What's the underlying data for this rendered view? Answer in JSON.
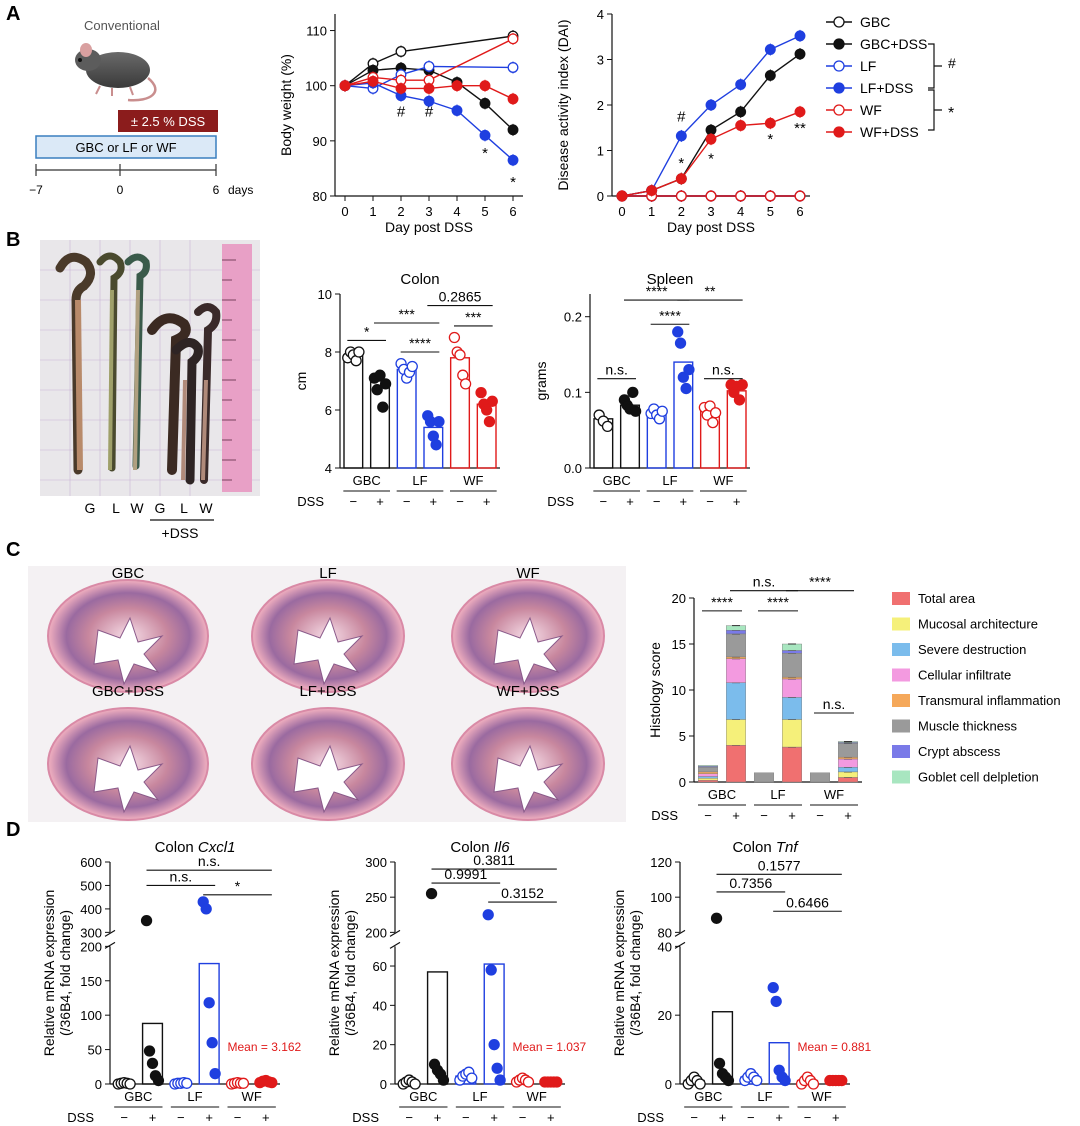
{
  "panel_letters": [
    "A",
    "B",
    "C",
    "D"
  ],
  "colors": {
    "gbc": "#111111",
    "lf": "#1f3fe0",
    "wf": "#e01a1a",
    "dss_box": "#8b1c1c",
    "timeline_box": "#dbe9f7",
    "timeline_border": "#3a7fbf"
  },
  "schematic": {
    "mouse_label": "Conventional",
    "dss_label": "± 2.5 % DSS",
    "diet_label": "GBC or LF or WF",
    "timeline_ticks": [
      "−7",
      "0",
      "6"
    ],
    "timeline_unit": "days"
  },
  "legend_A": {
    "items": [
      {
        "label": "GBC",
        "color": "#111111",
        "filled": false
      },
      {
        "label": "GBC+DSS",
        "color": "#111111",
        "filled": true
      },
      {
        "label": "LF",
        "color": "#1f3fe0",
        "filled": false
      },
      {
        "label": "LF+DSS",
        "color": "#1f3fe0",
        "filled": true
      },
      {
        "label": "WF",
        "color": "#e01a1a",
        "filled": false
      },
      {
        "label": "WF+DSS",
        "color": "#e01a1a",
        "filled": true
      }
    ],
    "sig_lf": "#",
    "sig_wf": "*"
  },
  "photoB": {
    "labels": [
      "G",
      "L",
      "W",
      "G",
      "L",
      "W"
    ],
    "dss_label": "+DSS"
  },
  "groups": [
    "GBC",
    "LF",
    "WF"
  ],
  "dss_label": "DSS",
  "dss_signs": [
    "−",
    "+",
    "−",
    "+",
    "−",
    "+"
  ],
  "histology": {
    "top": [
      "GBC",
      "LF",
      "WF"
    ],
    "bottom": [
      "GBC+DSS",
      "LF+DSS",
      "WF+DSS"
    ]
  },
  "chart_data": [
    {
      "id": "body_weight",
      "type": "line",
      "ylabel": "Body weight (%)",
      "xlabel": "Day post DSS",
      "x": [
        0,
        1,
        2,
        3,
        4,
        5,
        6
      ],
      "ylim": [
        80,
        113
      ],
      "yticks": [
        80,
        90,
        100,
        110
      ],
      "series": [
        {
          "name": "GBC",
          "color": "#111111",
          "filled": false,
          "values": [
            100,
            104,
            106.2,
            null,
            null,
            null,
            109
          ]
        },
        {
          "name": "GBC+DSS",
          "color": "#111111",
          "filled": true,
          "values": [
            100,
            102.8,
            103.2,
            102.8,
            100.6,
            96.8,
            92
          ]
        },
        {
          "name": "LF",
          "color": "#1f3fe0",
          "filled": false,
          "values": [
            100,
            99.5,
            102,
            103.5,
            null,
            null,
            103.3
          ]
        },
        {
          "name": "LF+DSS",
          "color": "#1f3fe0",
          "filled": true,
          "values": [
            100,
            100.5,
            98.2,
            97.2,
            95.5,
            91,
            86.5
          ]
        },
        {
          "name": "WF",
          "color": "#e01a1a",
          "filled": false,
          "values": [
            100,
            101.5,
            101,
            101,
            null,
            null,
            108.5
          ]
        },
        {
          "name": "WF+DSS",
          "color": "#e01a1a",
          "filled": true,
          "values": [
            100,
            100.8,
            99.5,
            99.5,
            100,
            100,
            97.6
          ]
        }
      ],
      "annotations": [
        {
          "x": 2,
          "y": 95.3,
          "text": "#"
        },
        {
          "x": 3,
          "y": 95.3,
          "text": "#"
        },
        {
          "x": 5,
          "y": 87.8,
          "text": "*"
        },
        {
          "x": 6,
          "y": 82.5,
          "text": "*"
        }
      ]
    },
    {
      "id": "dai",
      "type": "line",
      "ylabel": "Disease activity index (DAI)",
      "xlabel": "Day post DSS",
      "x": [
        0,
        1,
        2,
        3,
        4,
        5,
        6
      ],
      "ylim": [
        0,
        4
      ],
      "yticks": [
        0,
        1,
        2,
        3,
        4
      ],
      "series": [
        {
          "name": "GBC",
          "color": "#111111",
          "filled": false,
          "values": [
            0,
            0,
            0,
            0,
            0,
            0,
            0
          ]
        },
        {
          "name": "GBC+DSS",
          "color": "#111111",
          "filled": true,
          "values": [
            0,
            0.12,
            0.38,
            1.45,
            1.85,
            2.65,
            3.12
          ]
        },
        {
          "name": "LF",
          "color": "#1f3fe0",
          "filled": false,
          "values": [
            0,
            0,
            0,
            0,
            0,
            0,
            0
          ]
        },
        {
          "name": "LF+DSS",
          "color": "#1f3fe0",
          "filled": true,
          "values": [
            0,
            0.12,
            1.32,
            2.0,
            2.45,
            3.22,
            3.52
          ]
        },
        {
          "name": "WF",
          "color": "#e01a1a",
          "filled": false,
          "values": [
            0,
            0,
            0,
            0,
            0,
            0,
            0
          ]
        },
        {
          "name": "WF+DSS",
          "color": "#e01a1a",
          "filled": true,
          "values": [
            0,
            0.12,
            0.38,
            1.25,
            1.55,
            1.6,
            1.85
          ]
        }
      ],
      "annotations": [
        {
          "x": 2,
          "y": 1.75,
          "text": "#"
        },
        {
          "x": 2,
          "y": 0.72,
          "text": "*"
        },
        {
          "x": 3,
          "y": 0.82,
          "text": "*"
        },
        {
          "x": 5,
          "y": 1.25,
          "text": "*"
        },
        {
          "x": 6,
          "y": 1.5,
          "text": "**"
        }
      ]
    },
    {
      "id": "colon",
      "type": "bar",
      "title": "Colon",
      "ylabel": "cm",
      "ylim": [
        4,
        10
      ],
      "yticks": [
        4,
        6,
        8,
        10
      ],
      "categories": [
        "GBC",
        "GBC+DSS",
        "LF",
        "LF+DSS",
        "WF",
        "WF+DSS"
      ],
      "values": [
        7.9,
        7.0,
        7.4,
        5.4,
        7.8,
        6.2
      ],
      "points": [
        [
          7.8,
          8.0,
          7.9,
          7.7,
          8.0
        ],
        [
          7.1,
          6.7,
          7.2,
          6.1,
          6.9
        ],
        [
          7.6,
          7.4,
          7.1,
          7.3,
          7.5
        ],
        [
          5.8,
          5.6,
          5.1,
          4.8,
          5.6
        ],
        [
          8.5,
          8.0,
          7.9,
          7.2,
          6.9
        ],
        [
          6.6,
          6.2,
          6.0,
          5.6,
          6.3
        ]
      ],
      "sig": [
        {
          "a": 0,
          "b": 1,
          "y": 8.4,
          "text": "*"
        },
        {
          "a": 1,
          "b": 3,
          "y": 9.0,
          "text": "***"
        },
        {
          "a": 2,
          "b": 3,
          "y": 8.0,
          "text": "****"
        },
        {
          "a": 4,
          "b": 5,
          "y": 8.9,
          "text": "***"
        },
        {
          "a": 3,
          "b": 5,
          "y": 9.6,
          "text": "0.2865"
        }
      ]
    },
    {
      "id": "spleen",
      "type": "bar",
      "title": "Spleen",
      "ylabel": "grams",
      "ylim": [
        0,
        0.23
      ],
      "yticks": [
        0.0,
        0.1,
        0.2
      ],
      "categories": [
        "GBC",
        "GBC+DSS",
        "LF",
        "LF+DSS",
        "WF",
        "WF+DSS"
      ],
      "values": [
        0.065,
        0.083,
        0.072,
        0.14,
        0.075,
        0.102
      ],
      "points": [
        [
          0.07,
          0.062,
          0.055
        ],
        [
          0.09,
          0.083,
          0.078,
          0.1,
          0.075
        ],
        [
          0.072,
          0.078,
          0.07,
          0.065,
          0.075
        ],
        [
          0.18,
          0.165,
          0.12,
          0.105,
          0.13
        ],
        [
          0.08,
          0.07,
          0.082,
          0.06,
          0.073
        ],
        [
          0.11,
          0.1,
          0.108,
          0.09,
          0.11
        ]
      ],
      "sig": [
        {
          "a": 0,
          "b": 1,
          "y": 0.118,
          "text": "n.s."
        },
        {
          "a": 2,
          "b": 3,
          "y": 0.19,
          "text": "****"
        },
        {
          "a": 1,
          "b": 3,
          "y": 0.222,
          "text": "****"
        },
        {
          "a": 3,
          "b": 5,
          "y": 0.222,
          "text": "**"
        },
        {
          "a": 4,
          "b": 5,
          "y": 0.118,
          "text": "n.s."
        }
      ]
    },
    {
      "id": "histology_score",
      "type": "bar",
      "stacked": true,
      "ylabel": "Histology score",
      "ylim": [
        0,
        20
      ],
      "yticks": [
        0,
        5,
        10,
        15,
        20
      ],
      "categories": [
        "GBC",
        "GBC+DSS",
        "LF",
        "LF+DSS",
        "WF",
        "WF+DSS"
      ],
      "series": [
        {
          "name": "Total area",
          "color": "#f07070",
          "values": [
            0.2,
            4.0,
            0,
            3.8,
            0,
            0.5
          ]
        },
        {
          "name": "Mucosal architecture",
          "color": "#f5f07a",
          "values": [
            0.2,
            2.8,
            0,
            3.0,
            0,
            0.6
          ]
        },
        {
          "name": "Severe destruction",
          "color": "#7bbcec",
          "values": [
            0.2,
            4.0,
            0,
            2.4,
            0,
            0.5
          ]
        },
        {
          "name": "Cellular infiltrate",
          "color": "#f39ae0",
          "values": [
            0.3,
            2.6,
            0,
            2.0,
            0,
            0.9
          ]
        },
        {
          "name": "Transmural inflammation",
          "color": "#f5a85a",
          "values": [
            0.2,
            0.2,
            0,
            0.2,
            0,
            0.2
          ]
        },
        {
          "name": "Muscle thickness",
          "color": "#9a9a9a",
          "values": [
            0.5,
            2.5,
            1.0,
            2.6,
            1.0,
            1.5
          ]
        },
        {
          "name": "Crypt abscess",
          "color": "#7a7ae8",
          "values": [
            0.1,
            0.4,
            0,
            0.3,
            0,
            0.1
          ]
        },
        {
          "name": "Goblet cell delpletion",
          "color": "#a8e6c0",
          "values": [
            0.1,
            0.5,
            0,
            0.7,
            0,
            0.1
          ]
        }
      ],
      "sig": [
        {
          "a": 0,
          "b": 1,
          "y": 18.6,
          "text": "****"
        },
        {
          "a": 2,
          "b": 3,
          "y": 18.6,
          "text": "****"
        },
        {
          "a": 1,
          "b": 3,
          "y": 20.8,
          "text": "n.s."
        },
        {
          "a": 3,
          "b": 5,
          "y": 20.8,
          "text": "****"
        },
        {
          "a": 4,
          "b": 5,
          "y": 7.5,
          "text": "n.s."
        }
      ]
    },
    {
      "id": "cxcl1",
      "type": "bar",
      "title_plain": "Colon ",
      "title_gene": "Cxcl1",
      "ylabel": "Relative mRNA expression (/36B4, fold change)",
      "ylabel_lines": [
        "Relative mRNA expression",
        "(/36B4, fold change)"
      ],
      "broken_axis": true,
      "lower_range": [
        0,
        200
      ],
      "lower_ticks": [
        0,
        50,
        100,
        150,
        200
      ],
      "upper_range": [
        300,
        600
      ],
      "upper_ticks": [
        300,
        400,
        500,
        600
      ],
      "categories": [
        "GBC",
        "GBC+DSS",
        "LF",
        "LF+DSS",
        "WF",
        "WF+DSS"
      ],
      "values": [
        1,
        88,
        1,
        175,
        1,
        3.162
      ],
      "points": [
        [
          0,
          1,
          2,
          1,
          0
        ],
        [
          350,
          48,
          30,
          12,
          5
        ],
        [
          0,
          1,
          1,
          2,
          1
        ],
        [
          430,
          400,
          118,
          60,
          15
        ],
        [
          0,
          1,
          2,
          1,
          1
        ],
        [
          2,
          4,
          5,
          3,
          2
        ]
      ],
      "mean_label": "Mean = 3.162",
      "sig": [
        {
          "a": 1,
          "b": 5,
          "y": 565,
          "text": "n.s."
        },
        {
          "a": 1,
          "b": 3,
          "y": 500,
          "text": "n.s."
        },
        {
          "a": 3,
          "b": 5,
          "y": 460,
          "text": "*"
        }
      ]
    },
    {
      "id": "il6",
      "type": "bar",
      "title_plain": "Colon ",
      "title_gene": "Il6",
      "ylabel": "Relative mRNA expression (/36B4, fold change)",
      "ylabel_lines": [
        "Relative mRNA expression",
        "(/36B4, fold change)"
      ],
      "broken_axis": true,
      "lower_range": [
        0,
        70
      ],
      "lower_ticks": [
        0,
        20,
        40,
        60
      ],
      "upper_range": [
        200,
        300
      ],
      "upper_ticks": [
        200,
        250,
        300
      ],
      "categories": [
        "GBC",
        "GBC+DSS",
        "LF",
        "LF+DSS",
        "WF",
        "WF+DSS"
      ],
      "values": [
        1,
        57,
        4,
        61,
        2,
        1.037
      ],
      "points": [
        [
          0,
          1,
          2,
          1,
          0
        ],
        [
          255,
          10,
          7,
          5,
          2
        ],
        [
          2,
          4,
          5,
          6,
          3
        ],
        [
          225,
          58,
          20,
          8,
          2
        ],
        [
          1,
          2,
          3,
          2,
          1
        ],
        [
          1,
          1,
          1,
          1,
          1
        ]
      ],
      "mean_label": "Mean = 1.037",
      "sig": [
        {
          "a": 1,
          "b": 5,
          "y": 290,
          "text": "0.3811"
        },
        {
          "a": 1,
          "b": 3,
          "y": 270,
          "text": "0.9991"
        },
        {
          "a": 3,
          "b": 5,
          "y": 243,
          "text": "0.3152"
        }
      ]
    },
    {
      "id": "tnf",
      "type": "bar",
      "title_plain": "Colon ",
      "title_gene": "Tnf",
      "ylabel": "Relative mRNA expression (/36B4, fold change)",
      "ylabel_lines": [
        "Relative mRNA expression",
        "(/36B4, fold change)"
      ],
      "broken_axis": true,
      "lower_range": [
        0,
        40
      ],
      "lower_ticks": [
        0,
        20,
        40
      ],
      "upper_range": [
        80,
        120
      ],
      "upper_ticks": [
        80,
        100,
        120
      ],
      "categories": [
        "GBC",
        "GBC+DSS",
        "LF",
        "LF+DSS",
        "WF",
        "WF+DSS"
      ],
      "values": [
        1,
        21,
        2,
        12,
        1,
        0.881
      ],
      "points": [
        [
          0,
          1,
          2,
          1,
          0
        ],
        [
          88,
          6,
          3,
          2,
          1
        ],
        [
          1,
          2,
          3,
          2,
          1
        ],
        [
          28,
          24,
          4,
          2,
          1
        ],
        [
          0,
          1,
          2,
          1,
          0
        ],
        [
          1,
          1,
          1,
          1,
          1
        ]
      ],
      "mean_label": "Mean = 0.881",
      "sig": [
        {
          "a": 1,
          "b": 5,
          "y": 113,
          "text": "0.1577"
        },
        {
          "a": 1,
          "b": 3,
          "y": 103,
          "text": "0.7356"
        },
        {
          "a": 3,
          "b": 5,
          "y": 92,
          "text": "0.6466"
        }
      ]
    }
  ]
}
